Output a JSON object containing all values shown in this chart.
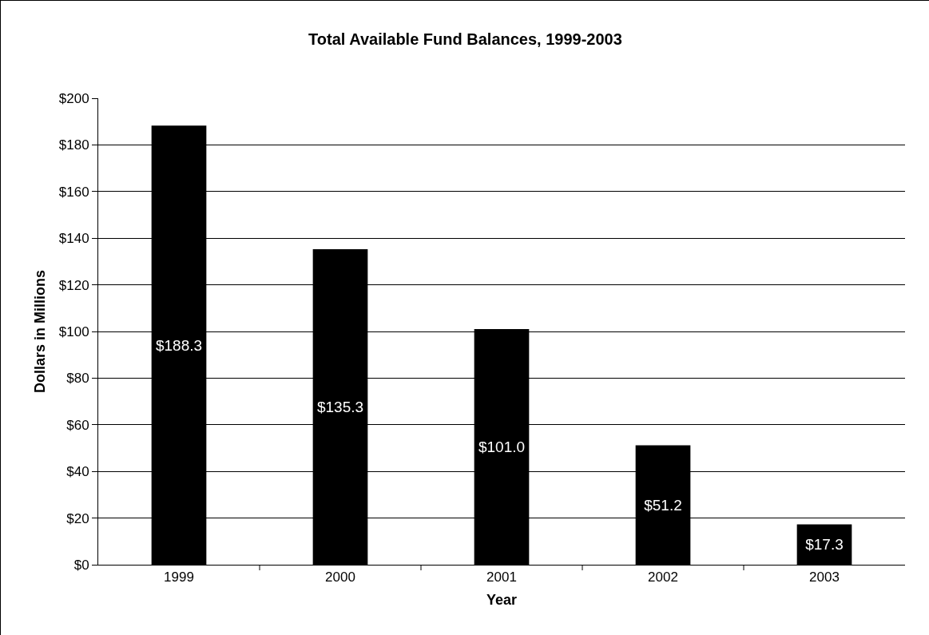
{
  "chart_data": {
    "type": "bar",
    "title": "Total Available Fund Balances, 1999-2003",
    "xlabel": "Year",
    "ylabel": "Dollars in Millions",
    "categories": [
      "1999",
      "2000",
      "2001",
      "2002",
      "2003"
    ],
    "values": [
      188.3,
      135.3,
      101.0,
      51.2,
      17.3
    ],
    "value_labels": [
      "$188.3",
      "$135.3",
      "$101.0",
      "$51.2",
      "$17.3"
    ],
    "color": "#000000",
    "ylim": [
      0,
      200
    ],
    "yticks": [
      {
        "value": 0,
        "label": "$0"
      },
      {
        "value": 20,
        "label": "$20"
      },
      {
        "value": 40,
        "label": "$40"
      },
      {
        "value": 60,
        "label": "$60"
      },
      {
        "value": 80,
        "label": "$80"
      },
      {
        "value": 100,
        "label": "$100"
      },
      {
        "value": 120,
        "label": "$120"
      },
      {
        "value": 140,
        "label": "$140"
      },
      {
        "value": 160,
        "label": "$160"
      },
      {
        "value": 180,
        "label": "$180"
      },
      {
        "value": 200,
        "label": "$200"
      }
    ],
    "grid": "y"
  }
}
